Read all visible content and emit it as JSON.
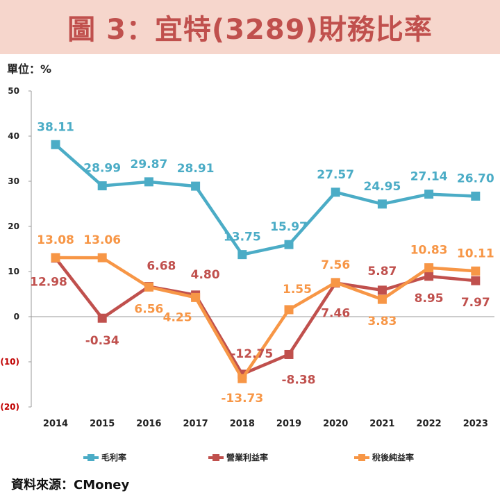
{
  "header": {
    "title": "圖 3：宜特(3289)財務比率"
  },
  "unit": "單位：%",
  "source": "資料來源：CMoney",
  "chart_data": {
    "type": "line",
    "categories": [
      "2014",
      "2015",
      "2016",
      "2017",
      "2018",
      "2019",
      "2020",
      "2021",
      "2022",
      "2023"
    ],
    "ylim": [
      -20,
      50
    ],
    "y_ticks": [
      50,
      40,
      30,
      20,
      10,
      0,
      -10,
      -20
    ],
    "y_tick_labels": [
      "50",
      "40",
      "30",
      "20",
      "10",
      "0",
      "(10)",
      "(20)"
    ],
    "grid": false,
    "legend_position": "bottom",
    "series": [
      {
        "name": "毛利率",
        "color": "#4bacc6",
        "values": [
          38.11,
          28.99,
          29.87,
          28.91,
          13.75,
          15.97,
          27.57,
          24.95,
          27.14,
          26.7
        ],
        "labels": [
          "38.11",
          "28.99",
          "29.87",
          "28.91",
          "13.75",
          "15.97",
          "27.57",
          "24.95",
          "27.14",
          "26.70"
        ]
      },
      {
        "name": "營業利益率",
        "color": "#c0504d",
        "values": [
          12.98,
          -0.34,
          6.68,
          4.8,
          -12.75,
          -8.38,
          7.46,
          5.87,
          8.95,
          7.97
        ],
        "labels": [
          "12.98",
          "-0.34",
          "6.68",
          "4.80",
          "-12.75",
          "-8.38",
          "7.46",
          "5.87",
          "8.95",
          "7.97"
        ]
      },
      {
        "name": "稅後純益率",
        "color": "#f79646",
        "values": [
          13.08,
          13.06,
          6.56,
          4.25,
          -13.73,
          1.55,
          7.56,
          3.83,
          10.83,
          10.11
        ],
        "labels": [
          "13.08",
          "13.06",
          "6.56",
          "4.25",
          "-13.73",
          "1.55",
          "7.56",
          "3.83",
          "10.83",
          "10.11"
        ]
      }
    ]
  }
}
